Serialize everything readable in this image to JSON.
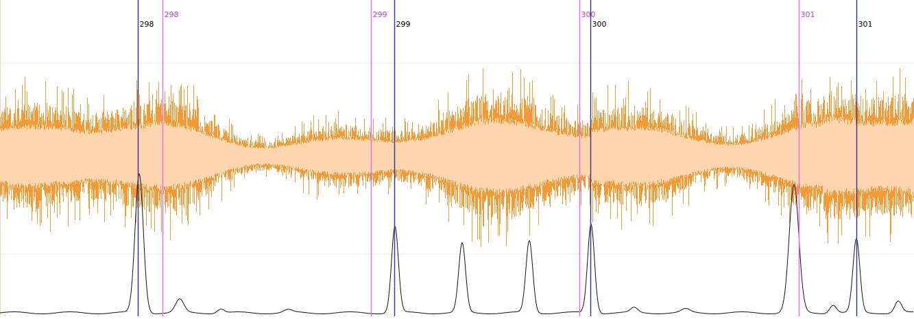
{
  "markers_a": [
    {
      "label": "298"
    },
    {
      "label": "299"
    },
    {
      "label": "300"
    },
    {
      "label": "301"
    }
  ],
  "markers_b": [
    {
      "label": "298"
    },
    {
      "label": "299"
    },
    {
      "label": "300"
    },
    {
      "label": "301"
    }
  ]
}
